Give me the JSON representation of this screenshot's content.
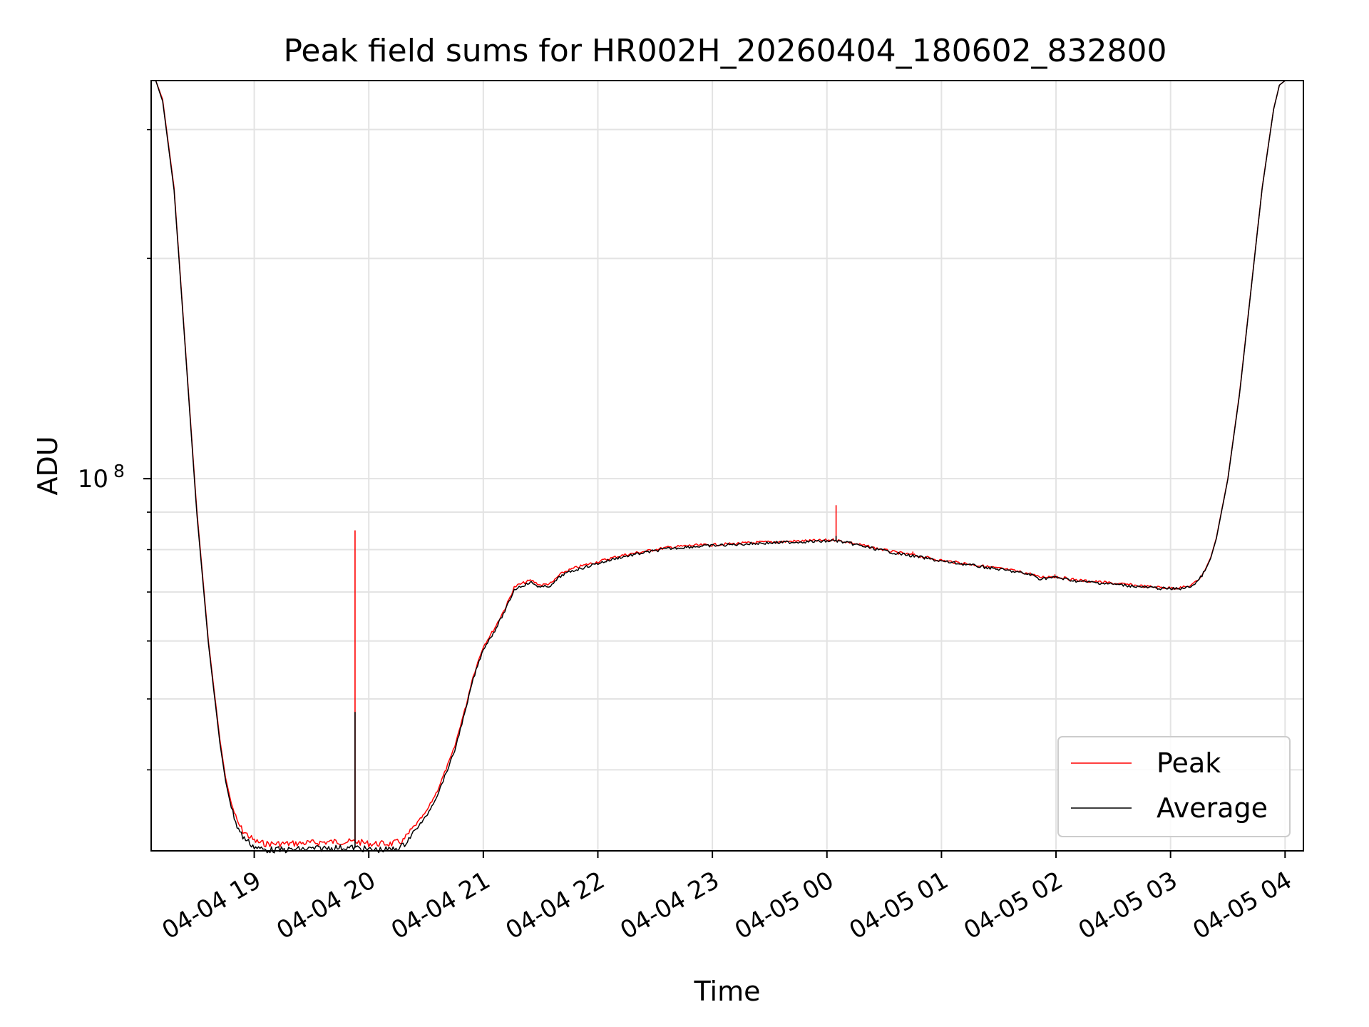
{
  "chart_data": {
    "type": "line",
    "title": "Peak field sums for HR002H_20260404_180602_832800",
    "xlabel": "Time",
    "ylabel": "ADU",
    "y_scale": "log",
    "x_units": "hours since 2026-04-04 00:00",
    "xlim": [
      18.1,
      28.16
    ],
    "ylim": [
      31000000,
      350000000
    ],
    "x_ticks": [
      {
        "value": 19,
        "label": "04-04 19"
      },
      {
        "value": 20,
        "label": "04-04 20"
      },
      {
        "value": 21,
        "label": "04-04 21"
      },
      {
        "value": 22,
        "label": "04-04 22"
      },
      {
        "value": 23,
        "label": "04-04 23"
      },
      {
        "value": 24,
        "label": "04-05 00"
      },
      {
        "value": 25,
        "label": "04-05 01"
      },
      {
        "value": 26,
        "label": "04-05 02"
      },
      {
        "value": 27,
        "label": "04-05 03"
      },
      {
        "value": 28,
        "label": "04-05 04"
      }
    ],
    "y_major_ticks": [
      {
        "value": 100000000,
        "base": "10",
        "exp": "8"
      }
    ],
    "y_minor_ticks": [
      40000000,
      50000000,
      60000000,
      70000000,
      80000000,
      90000000,
      200000000,
      300000000
    ],
    "grid": true,
    "legend_position": "lower-right",
    "series": [
      {
        "name": "Peak",
        "color": "#ff0000",
        "x": [
          18.14,
          18.2,
          18.3,
          18.4,
          18.5,
          18.6,
          18.7,
          18.75,
          18.8,
          18.85,
          18.9,
          18.95,
          19.0,
          19.05,
          19.1,
          19.2,
          19.3,
          19.5,
          19.7,
          19.88,
          19.9,
          20.0,
          20.2,
          20.3,
          20.4,
          20.5,
          20.6,
          20.7,
          20.75,
          20.8,
          20.85,
          20.9,
          20.95,
          21.0,
          21.1,
          21.2,
          21.27,
          21.3,
          21.4,
          21.42,
          21.5,
          21.6,
          21.65,
          21.7,
          21.8,
          21.9,
          22.0,
          22.2,
          22.4,
          22.6,
          22.8,
          23.0,
          23.2,
          23.4,
          23.6,
          23.8,
          23.95,
          24.08,
          24.1,
          24.2,
          24.4,
          24.6,
          24.8,
          25.0,
          25.2,
          25.4,
          25.6,
          25.8,
          25.85,
          25.95,
          26.0,
          26.1,
          26.2,
          26.4,
          26.6,
          26.8,
          27.0,
          27.1,
          27.15,
          27.2,
          27.25,
          27.3,
          27.35,
          27.4,
          27.5,
          27.6,
          27.7,
          27.8,
          27.9,
          27.95,
          28.0
        ],
        "y": [
          350000000,
          330000000,
          250000000,
          150000000,
          90000000,
          60000000,
          44000000,
          39000000,
          36000000,
          34000000,
          33000000,
          32500000,
          32000000,
          31800000,
          31700000,
          31700000,
          31700000,
          31800000,
          31900000,
          31900000,
          31900000,
          31700000,
          31700000,
          32000000,
          33500000,
          35000000,
          37500000,
          41000000,
          43000000,
          46000000,
          49000000,
          53000000,
          56000000,
          59000000,
          62500000,
          67000000,
          71000000,
          71500000,
          72500000,
          72600000,
          71500000,
          72000000,
          73500000,
          74500000,
          75500000,
          76300000,
          77000000,
          78500000,
          79500000,
          80500000,
          81000000,
          81200000,
          81500000,
          81800000,
          82000000,
          82200000,
          82300000,
          82500000,
          82300000,
          81800000,
          80500000,
          79300000,
          78400000,
          77300000,
          76600000,
          75800000,
          75000000,
          74000000,
          73300000,
          73500000,
          73500000,
          73000000,
          72600000,
          72200000,
          71700000,
          71200000,
          70900000,
          71000000,
          71200000,
          71800000,
          73000000,
          75000000,
          78000000,
          83000000,
          100000000,
          130000000,
          180000000,
          250000000,
          320000000,
          345000000,
          350000000
        ],
        "spikes": [
          {
            "x": 19.88,
            "y": 85000000
          },
          {
            "x": 24.08,
            "y": 92000000
          },
          {
            "x": 24.75,
            "y": 79500000
          },
          {
            "x": 25.99,
            "y": 74000000
          }
        ]
      },
      {
        "name": "Average",
        "color": "#000000",
        "x": [
          18.14,
          18.2,
          18.3,
          18.4,
          18.5,
          18.6,
          18.7,
          18.75,
          18.8,
          18.85,
          18.9,
          18.95,
          19.0,
          19.05,
          19.1,
          19.2,
          19.3,
          19.5,
          19.7,
          19.88,
          19.9,
          20.0,
          20.2,
          20.3,
          20.4,
          20.5,
          20.6,
          20.7,
          20.75,
          20.8,
          20.85,
          20.9,
          20.95,
          21.0,
          21.1,
          21.2,
          21.27,
          21.3,
          21.4,
          21.42,
          21.5,
          21.6,
          21.65,
          21.7,
          21.8,
          21.9,
          22.0,
          22.2,
          22.4,
          22.6,
          22.8,
          23.0,
          23.2,
          23.4,
          23.6,
          23.8,
          23.95,
          24.08,
          24.1,
          24.2,
          24.4,
          24.6,
          24.8,
          25.0,
          25.2,
          25.4,
          25.6,
          25.8,
          25.85,
          25.95,
          26.0,
          26.1,
          26.2,
          26.4,
          26.6,
          26.8,
          27.0,
          27.1,
          27.15,
          27.2,
          27.25,
          27.3,
          27.35,
          27.4,
          27.5,
          27.6,
          27.7,
          27.8,
          27.9,
          27.95,
          28.0
        ],
        "y": [
          350000000,
          328000000,
          248000000,
          149000000,
          89000000,
          59500000,
          43500000,
          38600000,
          35500000,
          33500000,
          32400000,
          31900000,
          31400000,
          31200000,
          31100000,
          31100000,
          31100000,
          31200000,
          31300000,
          31300000,
          31300000,
          31100000,
          31100000,
          31500000,
          33000000,
          34500000,
          37000000,
          40500000,
          42500000,
          45500000,
          48500000,
          52500000,
          55500000,
          58500000,
          62000000,
          66500000,
          70500000,
          71000000,
          72000000,
          72100000,
          71000000,
          71500000,
          73000000,
          74000000,
          75000000,
          75800000,
          76600000,
          78100000,
          79200000,
          80200000,
          80700000,
          81000000,
          81300000,
          81600000,
          81800000,
          82000000,
          82100000,
          82300000,
          82100000,
          81600000,
          80300000,
          79100000,
          78200000,
          77100000,
          76400000,
          75600000,
          74800000,
          73800000,
          73000000,
          73200000,
          73300000,
          72800000,
          72400000,
          72000000,
          71500000,
          71000000,
          70700000,
          70800000,
          71000000,
          71600000,
          72800000,
          74800000,
          77800000,
          82800000,
          99800000,
          129500000,
          179500000,
          249500000,
          319500000,
          345000000,
          350000000
        ],
        "spikes": [
          {
            "x": 19.88,
            "y": 48000000
          },
          {
            "x": 24.08,
            "y": 83500000
          }
        ]
      }
    ]
  }
}
